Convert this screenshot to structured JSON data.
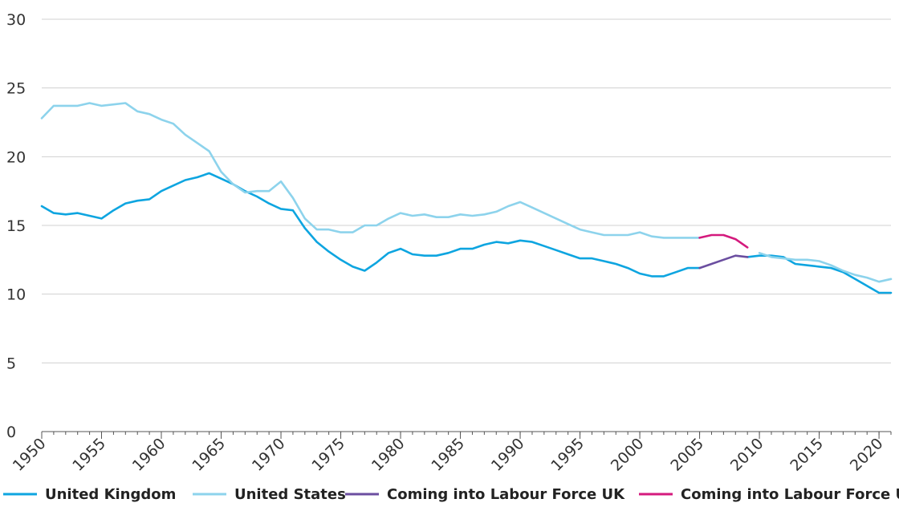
{
  "chart_data": {
    "type": "line",
    "title": "",
    "xlabel": "",
    "ylabel": "",
    "xlim": [
      1950,
      2021
    ],
    "ylim": [
      0,
      30
    ],
    "y_ticks": [
      0,
      5,
      10,
      15,
      20,
      25,
      30
    ],
    "x_ticks": [
      1950,
      1955,
      1960,
      1965,
      1970,
      1975,
      1980,
      1985,
      1990,
      1995,
      2000,
      2005,
      2010,
      2015,
      2020
    ],
    "grid": true,
    "legend_position": "bottom",
    "series": [
      {
        "name": "United Kingdom",
        "color": "#0ea5e0",
        "x": [
          1950,
          1951,
          1952,
          1953,
          1954,
          1955,
          1956,
          1957,
          1958,
          1959,
          1960,
          1961,
          1962,
          1963,
          1964,
          1965,
          1966,
          1967,
          1968,
          1969,
          1970,
          1971,
          1972,
          1973,
          1974,
          1975,
          1976,
          1977,
          1978,
          1979,
          1980,
          1981,
          1982,
          1983,
          1984,
          1985,
          1986,
          1987,
          1988,
          1989,
          1990,
          1991,
          1992,
          1993,
          1994,
          1995,
          1996,
          1997,
          1998,
          1999,
          2000,
          2001,
          2002,
          2003,
          2004,
          2005,
          2006,
          2007,
          2008,
          2009,
          2010,
          2011,
          2012,
          2013,
          2014,
          2015,
          2016,
          2017,
          2018,
          2019,
          2020,
          2021
        ],
        "values": [
          16.4,
          15.9,
          15.8,
          15.9,
          15.7,
          15.5,
          16.1,
          16.6,
          16.8,
          16.9,
          17.5,
          17.9,
          18.3,
          18.5,
          18.8,
          18.4,
          18.0,
          17.5,
          17.1,
          16.6,
          16.2,
          16.1,
          14.8,
          13.8,
          13.1,
          12.5,
          12.0,
          11.7,
          12.3,
          13.0,
          13.3,
          12.9,
          12.8,
          12.8,
          13.0,
          13.3,
          13.3,
          13.6,
          13.8,
          13.7,
          13.9,
          13.8,
          13.5,
          13.2,
          12.9,
          12.6,
          12.6,
          12.4,
          12.2,
          11.9,
          11.5,
          11.3,
          11.3,
          11.6,
          11.9,
          11.9,
          null,
          null,
          null,
          12.7,
          12.8,
          12.8,
          12.7,
          12.2,
          12.1,
          12.0,
          11.9,
          11.6,
          11.1,
          10.6,
          10.1,
          10.1
        ]
      },
      {
        "name": "United States",
        "color": "#8dd3ec",
        "x": [
          1950,
          1951,
          1952,
          1953,
          1954,
          1955,
          1956,
          1957,
          1958,
          1959,
          1960,
          1961,
          1962,
          1963,
          1964,
          1965,
          1966,
          1967,
          1968,
          1969,
          1970,
          1971,
          1972,
          1973,
          1974,
          1975,
          1976,
          1977,
          1978,
          1979,
          1980,
          1981,
          1982,
          1983,
          1984,
          1985,
          1986,
          1987,
          1988,
          1989,
          1990,
          1991,
          1992,
          1993,
          1994,
          1995,
          1996,
          1997,
          1998,
          1999,
          2000,
          2001,
          2002,
          2003,
          2004,
          2005,
          2006,
          2007,
          2008,
          2009,
          2010,
          2011,
          2012,
          2013,
          2014,
          2015,
          2016,
          2017,
          2018,
          2019,
          2020,
          2021
        ],
        "values": [
          22.8,
          23.7,
          23.7,
          23.7,
          23.9,
          23.7,
          23.8,
          23.9,
          23.3,
          23.1,
          22.7,
          22.4,
          21.6,
          21.0,
          20.4,
          18.9,
          18.0,
          17.4,
          17.5,
          17.5,
          18.2,
          17.0,
          15.5,
          14.7,
          14.7,
          14.5,
          14.5,
          15.0,
          15.0,
          15.5,
          15.9,
          15.7,
          15.8,
          15.6,
          15.6,
          15.8,
          15.7,
          15.8,
          16.0,
          16.4,
          16.7,
          16.3,
          15.9,
          15.5,
          15.1,
          14.7,
          14.5,
          14.3,
          14.3,
          14.3,
          14.5,
          14.2,
          14.1,
          14.1,
          14.1,
          14.1,
          null,
          null,
          null,
          null,
          13.0,
          12.7,
          12.6,
          12.5,
          12.5,
          12.4,
          12.1,
          11.7,
          11.4,
          11.2,
          10.9,
          11.1
        ]
      },
      {
        "name": "Coming into Labour Force UK",
        "color": "#6b4ea0",
        "x": [
          2005,
          2006,
          2007,
          2008,
          2009
        ],
        "values": [
          11.9,
          12.2,
          12.5,
          12.8,
          12.7
        ]
      },
      {
        "name": "Coming into Labour Force US",
        "color": "#d41a7d",
        "x": [
          2005,
          2006,
          2007,
          2008,
          2009
        ],
        "values": [
          14.1,
          14.3,
          14.3,
          14.0,
          13.4
        ]
      }
    ]
  }
}
